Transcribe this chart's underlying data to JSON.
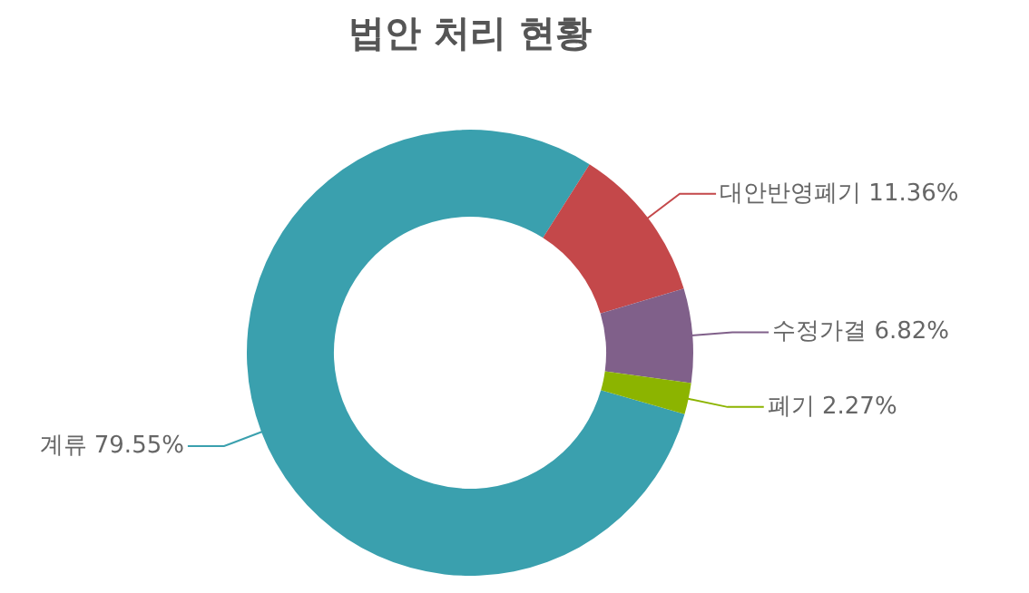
{
  "chart_data": {
    "type": "donut",
    "title": "법안 처리 현황",
    "categories": [
      "계류",
      "대안반영폐기",
      "수정가결",
      "폐기"
    ],
    "values": [
      79.55,
      11.36,
      6.82,
      2.27
    ],
    "value_labels": [
      "79.55%",
      "11.36%",
      "6.82%",
      "2.27%"
    ],
    "colors": [
      "#3aa0ae",
      "#c4484a",
      "#80608a",
      "#8cb400"
    ],
    "legend": false
  }
}
